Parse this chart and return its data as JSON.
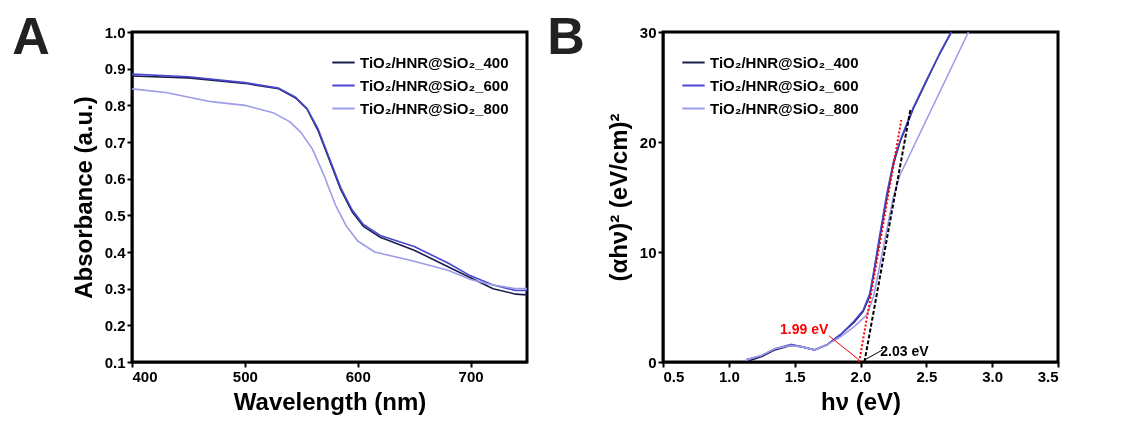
{
  "chart_data": [
    {
      "type": "line",
      "title": "A",
      "xlabel": "Wavelength (nm)",
      "ylabel": "Absorbance (a.u.)",
      "xlim": [
        400,
        750
      ],
      "xticks": [
        400,
        500,
        600,
        700
      ],
      "ylim": [
        0.1,
        1.0
      ],
      "yticks": [
        0.1,
        0.2,
        0.3,
        0.4,
        0.5,
        0.6,
        0.7,
        0.8,
        0.9,
        {
          "value": 1,
          "label": "1.0"
        }
      ],
      "legend": "top right",
      "grid": false,
      "series": [
        {
          "name": "TiO₂/HNR@SiO₂_400",
          "color": "#1c1c4e",
          "x": [
            400,
            450,
            500,
            530,
            545,
            555,
            565,
            575,
            585,
            595,
            605,
            620,
            650,
            680,
            700,
            720,
            740,
            750
          ],
          "values": [
            0.88,
            0.875,
            0.86,
            0.845,
            0.82,
            0.79,
            0.73,
            0.65,
            0.57,
            0.51,
            0.47,
            0.44,
            0.405,
            0.36,
            0.33,
            0.3,
            0.285,
            0.283
          ]
        },
        {
          "name": "TiO₂/HNR@SiO₂_600",
          "color": "#4848d0",
          "x": [
            400,
            450,
            500,
            530,
            545,
            555,
            565,
            575,
            585,
            595,
            605,
            620,
            650,
            680,
            700,
            720,
            740,
            750
          ],
          "values": [
            0.885,
            0.878,
            0.862,
            0.847,
            0.822,
            0.792,
            0.735,
            0.655,
            0.575,
            0.515,
            0.475,
            0.445,
            0.415,
            0.37,
            0.335,
            0.31,
            0.295,
            0.295
          ]
        },
        {
          "name": "TiO₂/HNR@SiO₂_800",
          "color": "#9c9ce8",
          "x": [
            400,
            430,
            470,
            500,
            525,
            540,
            550,
            560,
            570,
            580,
            590,
            600,
            615,
            650,
            680,
            700,
            720,
            740,
            750
          ],
          "values": [
            0.845,
            0.835,
            0.81,
            0.8,
            0.78,
            0.755,
            0.725,
            0.68,
            0.61,
            0.53,
            0.47,
            0.43,
            0.4,
            0.375,
            0.35,
            0.325,
            0.31,
            0.3,
            0.3
          ]
        }
      ]
    },
    {
      "type": "line",
      "title": "B",
      "xlabel": "hν (eV)",
      "ylabel": "(αhν)² (eV/cm)²",
      "xlim": [
        0.5,
        3.5
      ],
      "xticks": [
        0.5,
        {
          "value": 1,
          "label": "1.0"
        },
        1.5,
        {
          "value": 2,
          "label": "2.0"
        },
        2.5,
        {
          "value": 3,
          "label": "3.0"
        },
        3.5
      ],
      "ylim": [
        0,
        30
      ],
      "yticks": [
        0,
        10,
        20,
        30
      ],
      "legend": "top left",
      "grid": false,
      "series": [
        {
          "name": "TiO₂/HNR@SiO₂_400",
          "color": "#1c1c4e",
          "x": [
            1.15,
            1.25,
            1.35,
            1.47,
            1.55,
            1.65,
            1.75,
            1.85,
            1.95,
            2.02,
            2.07,
            2.1,
            2.15,
            2.2,
            2.25,
            2.3,
            2.35,
            2.4,
            2.5,
            2.6,
            2.69
          ],
          "values": [
            0.1,
            0.5,
            1.1,
            1.5,
            1.4,
            1.1,
            1.6,
            2.5,
            3.6,
            4.6,
            6,
            8,
            11.5,
            15,
            18,
            20,
            21.5,
            23,
            25.5,
            28,
            30
          ]
        },
        {
          "name": "TiO₂/HNR@SiO₂_600",
          "color": "#4848d0",
          "x": [
            1.13,
            1.25,
            1.35,
            1.47,
            1.55,
            1.65,
            1.75,
            1.85,
            1.95,
            2.02,
            2.07,
            2.1,
            2.15,
            2.2,
            2.25,
            2.3,
            2.35,
            2.4,
            2.5,
            2.6,
            2.69
          ],
          "values": [
            0.2,
            0.6,
            1.2,
            1.6,
            1.4,
            1.1,
            1.6,
            2.5,
            3.7,
            4.7,
            6.2,
            8.2,
            11.8,
            15.3,
            18.2,
            20.1,
            21.6,
            23.1,
            25.6,
            28,
            30
          ]
        },
        {
          "name": "TiO₂/HNR@SiO₂_800",
          "color": "#9c9ce8",
          "x": [
            1.13,
            1.25,
            1.35,
            1.47,
            1.55,
            1.65,
            1.75,
            1.85,
            1.95,
            2.05,
            2.1,
            2.15,
            2.2,
            2.25,
            2.3,
            2.4,
            2.5,
            2.6,
            2.7,
            2.82
          ],
          "values": [
            0.2,
            0.6,
            1.2,
            1.5,
            1.4,
            1.1,
            1.6,
            2.3,
            3.2,
            4.3,
            6,
            9,
            12,
            15,
            17,
            19.5,
            22,
            24.5,
            27,
            30
          ]
        },
        {
          "type": "line",
          "color": "#ff0000",
          "line_style": "dotted",
          "x": [
            1.99,
            2.31
          ],
          "values": [
            0,
            22
          ]
        },
        {
          "type": "line",
          "color": "#000000",
          "line_style": "dashed",
          "x": [
            2.03,
            2.38
          ],
          "values": [
            0,
            23
          ]
        }
      ],
      "annotations": [
        {
          "text": "1.99  eV",
          "x": 1.99,
          "y": 0
        },
        {
          "text": "2.03  eV",
          "x": 2.03,
          "y": 0
        }
      ]
    }
  ]
}
